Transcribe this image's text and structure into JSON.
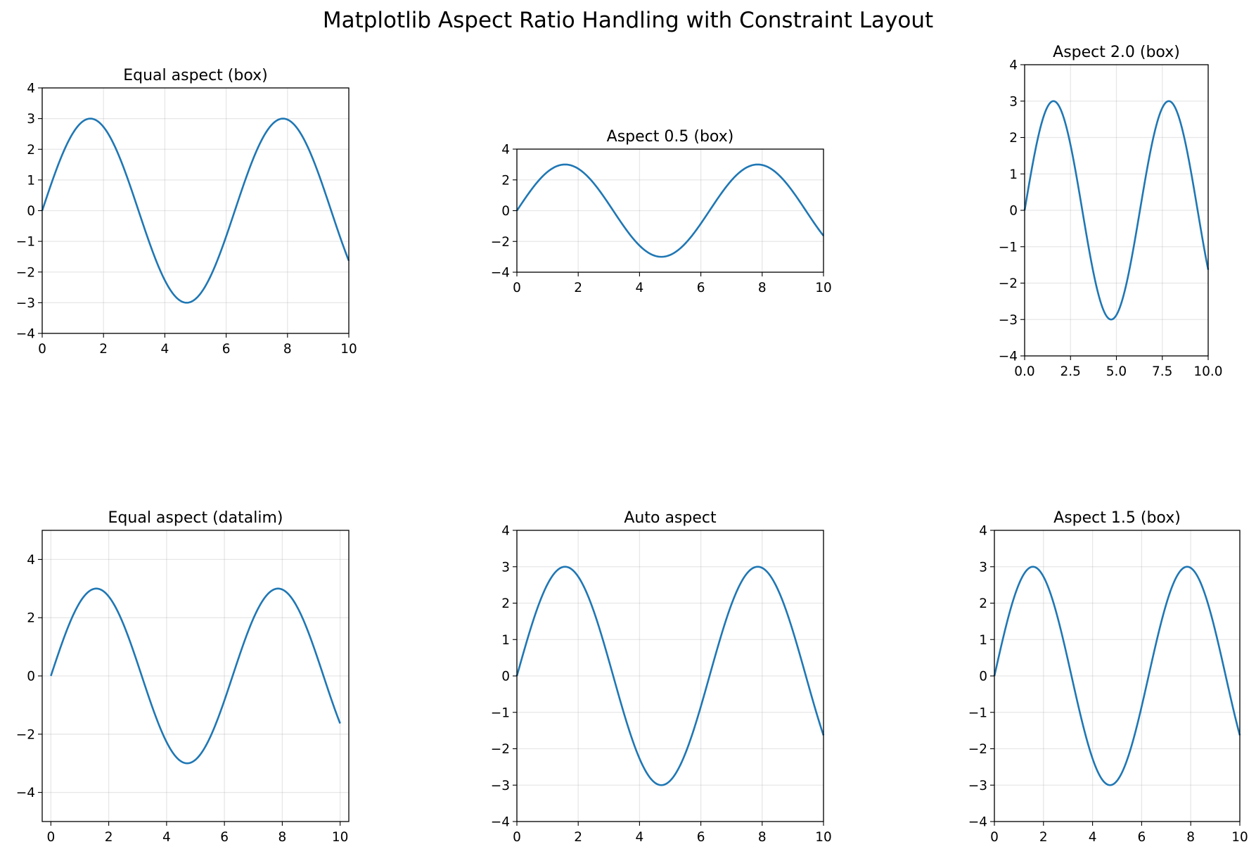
{
  "figure": {
    "suptitle": "Matplotlib Aspect Ratio Handling with Constraint Layout",
    "background": "#ffffff",
    "line_color": "#1f77b4"
  },
  "chart_data": [
    {
      "type": "line",
      "title": "Equal aspect (box)",
      "xlabel": "",
      "ylabel": "",
      "xlim": [
        0,
        10
      ],
      "ylim": [
        -4,
        4
      ],
      "xticks": [
        0,
        2,
        4,
        6,
        8,
        10
      ],
      "xtick_labels": [
        "0",
        "2",
        "4",
        "6",
        "8",
        "10"
      ],
      "yticks": [
        -4,
        -3,
        -2,
        -1,
        0,
        1,
        2,
        3,
        4
      ],
      "ytick_labels": [
        "−4",
        "−3",
        "−2",
        "−1",
        "0",
        "1",
        "2",
        "3",
        "4"
      ],
      "grid": true,
      "series": [
        {
          "x": [
            0,
            0.5,
            1,
            1.5,
            2,
            2.5,
            3,
            3.5,
            4,
            4.5,
            5,
            5.5,
            6,
            6.5,
            7,
            7.5,
            8,
            8.5,
            9,
            9.5,
            10
          ],
          "y": [
            0,
            1.44,
            2.52,
            2.99,
            2.73,
            1.8,
            0.42,
            -1.05,
            -2.27,
            -2.93,
            -2.88,
            -2.12,
            -0.84,
            0.65,
            1.97,
            2.81,
            2.97,
            2.39,
            1.24,
            -0.23,
            -1.63
          ]
        }
      ]
    },
    {
      "type": "line",
      "title": "Aspect 0.5 (box)",
      "xlabel": "",
      "ylabel": "",
      "xlim": [
        0,
        10
      ],
      "ylim": [
        -4,
        4
      ],
      "xticks": [
        0,
        2,
        4,
        6,
        8,
        10
      ],
      "xtick_labels": [
        "0",
        "2",
        "4",
        "6",
        "8",
        "10"
      ],
      "yticks": [
        -4,
        -2,
        0,
        2,
        4
      ],
      "ytick_labels": [
        "−4",
        "−2",
        "0",
        "2",
        "4"
      ],
      "grid": true,
      "series": [
        {
          "x": [
            0,
            0.5,
            1,
            1.5,
            2,
            2.5,
            3,
            3.5,
            4,
            4.5,
            5,
            5.5,
            6,
            6.5,
            7,
            7.5,
            8,
            8.5,
            9,
            9.5,
            10
          ],
          "y": [
            0,
            1.44,
            2.52,
            2.99,
            2.73,
            1.8,
            0.42,
            -1.05,
            -2.27,
            -2.93,
            -2.88,
            -2.12,
            -0.84,
            0.65,
            1.97,
            2.81,
            2.97,
            2.39,
            1.24,
            -0.23,
            -1.63
          ]
        }
      ]
    },
    {
      "type": "line",
      "title": "Aspect 2.0 (box)",
      "xlabel": "",
      "ylabel": "",
      "xlim": [
        0,
        10
      ],
      "ylim": [
        -4,
        4
      ],
      "xticks": [
        0,
        2.5,
        5,
        7.5,
        10
      ],
      "xtick_labels": [
        "0.0",
        "2.5",
        "5.0",
        "7.5",
        "10.0"
      ],
      "yticks": [
        -4,
        -3,
        -2,
        -1,
        0,
        1,
        2,
        3,
        4
      ],
      "ytick_labels": [
        "−4",
        "−3",
        "−2",
        "−1",
        "0",
        "1",
        "2",
        "3",
        "4"
      ],
      "grid": true,
      "series": [
        {
          "x": [
            0,
            0.5,
            1,
            1.5,
            2,
            2.5,
            3,
            3.5,
            4,
            4.5,
            5,
            5.5,
            6,
            6.5,
            7,
            7.5,
            8,
            8.5,
            9,
            9.5,
            10
          ],
          "y": [
            0,
            1.44,
            2.52,
            2.99,
            2.73,
            1.8,
            0.42,
            -1.05,
            -2.27,
            -2.93,
            -2.88,
            -2.12,
            -0.84,
            0.65,
            1.97,
            2.81,
            2.97,
            2.39,
            1.24,
            -0.23,
            -1.63
          ]
        }
      ]
    },
    {
      "type": "line",
      "title": "Equal aspect (datalim)",
      "xlabel": "",
      "ylabel": "",
      "xlim": [
        -0.3,
        10.3
      ],
      "ylim": [
        -5,
        5
      ],
      "xticks": [
        0,
        2,
        4,
        6,
        8,
        10
      ],
      "xtick_labels": [
        "0",
        "2",
        "4",
        "6",
        "8",
        "10"
      ],
      "yticks": [
        -4,
        -2,
        0,
        2,
        4
      ],
      "ytick_labels": [
        "−4",
        "−2",
        "0",
        "2",
        "4"
      ],
      "grid": true,
      "series": [
        {
          "x": [
            0,
            0.5,
            1,
            1.5,
            2,
            2.5,
            3,
            3.5,
            4,
            4.5,
            5,
            5.5,
            6,
            6.5,
            7,
            7.5,
            8,
            8.5,
            9,
            9.5,
            10
          ],
          "y": [
            0,
            1.44,
            2.52,
            2.99,
            2.73,
            1.8,
            0.42,
            -1.05,
            -2.27,
            -2.93,
            -2.88,
            -2.12,
            -0.84,
            0.65,
            1.97,
            2.81,
            2.97,
            2.39,
            1.24,
            -0.23,
            -1.63
          ]
        }
      ]
    },
    {
      "type": "line",
      "title": "Auto aspect",
      "xlabel": "",
      "ylabel": "",
      "xlim": [
        0,
        10
      ],
      "ylim": [
        -4,
        4
      ],
      "xticks": [
        0,
        2,
        4,
        6,
        8,
        10
      ],
      "xtick_labels": [
        "0",
        "2",
        "4",
        "6",
        "8",
        "10"
      ],
      "yticks": [
        -4,
        -3,
        -2,
        -1,
        0,
        1,
        2,
        3,
        4
      ],
      "ytick_labels": [
        "−4",
        "−3",
        "−2",
        "−1",
        "0",
        "1",
        "2",
        "3",
        "4"
      ],
      "grid": true,
      "series": [
        {
          "x": [
            0,
            0.5,
            1,
            1.5,
            2,
            2.5,
            3,
            3.5,
            4,
            4.5,
            5,
            5.5,
            6,
            6.5,
            7,
            7.5,
            8,
            8.5,
            9,
            9.5,
            10
          ],
          "y": [
            0,
            1.44,
            2.52,
            2.99,
            2.73,
            1.8,
            0.42,
            -1.05,
            -2.27,
            -2.93,
            -2.88,
            -2.12,
            -0.84,
            0.65,
            1.97,
            2.81,
            2.97,
            2.39,
            1.24,
            -0.23,
            -1.63
          ]
        }
      ]
    },
    {
      "type": "line",
      "title": "Aspect 1.5 (box)",
      "xlabel": "",
      "ylabel": "",
      "xlim": [
        0,
        10
      ],
      "ylim": [
        -4,
        4
      ],
      "xticks": [
        0,
        2,
        4,
        6,
        8,
        10
      ],
      "xtick_labels": [
        "0",
        "2",
        "4",
        "6",
        "8",
        "10"
      ],
      "yticks": [
        -4,
        -3,
        -2,
        -1,
        0,
        1,
        2,
        3,
        4
      ],
      "ytick_labels": [
        "−4",
        "−3",
        "−2",
        "−1",
        "0",
        "1",
        "2",
        "3",
        "4"
      ],
      "grid": true,
      "series": [
        {
          "x": [
            0,
            0.5,
            1,
            1.5,
            2,
            2.5,
            3,
            3.5,
            4,
            4.5,
            5,
            5.5,
            6,
            6.5,
            7,
            7.5,
            8,
            8.5,
            9,
            9.5,
            10
          ],
          "y": [
            0,
            1.44,
            2.52,
            2.99,
            2.73,
            1.8,
            0.42,
            -1.05,
            -2.27,
            -2.93,
            -2.88,
            -2.12,
            -0.84,
            0.65,
            1.97,
            2.81,
            2.97,
            2.39,
            1.24,
            -0.23,
            -1.63
          ]
        }
      ]
    }
  ]
}
